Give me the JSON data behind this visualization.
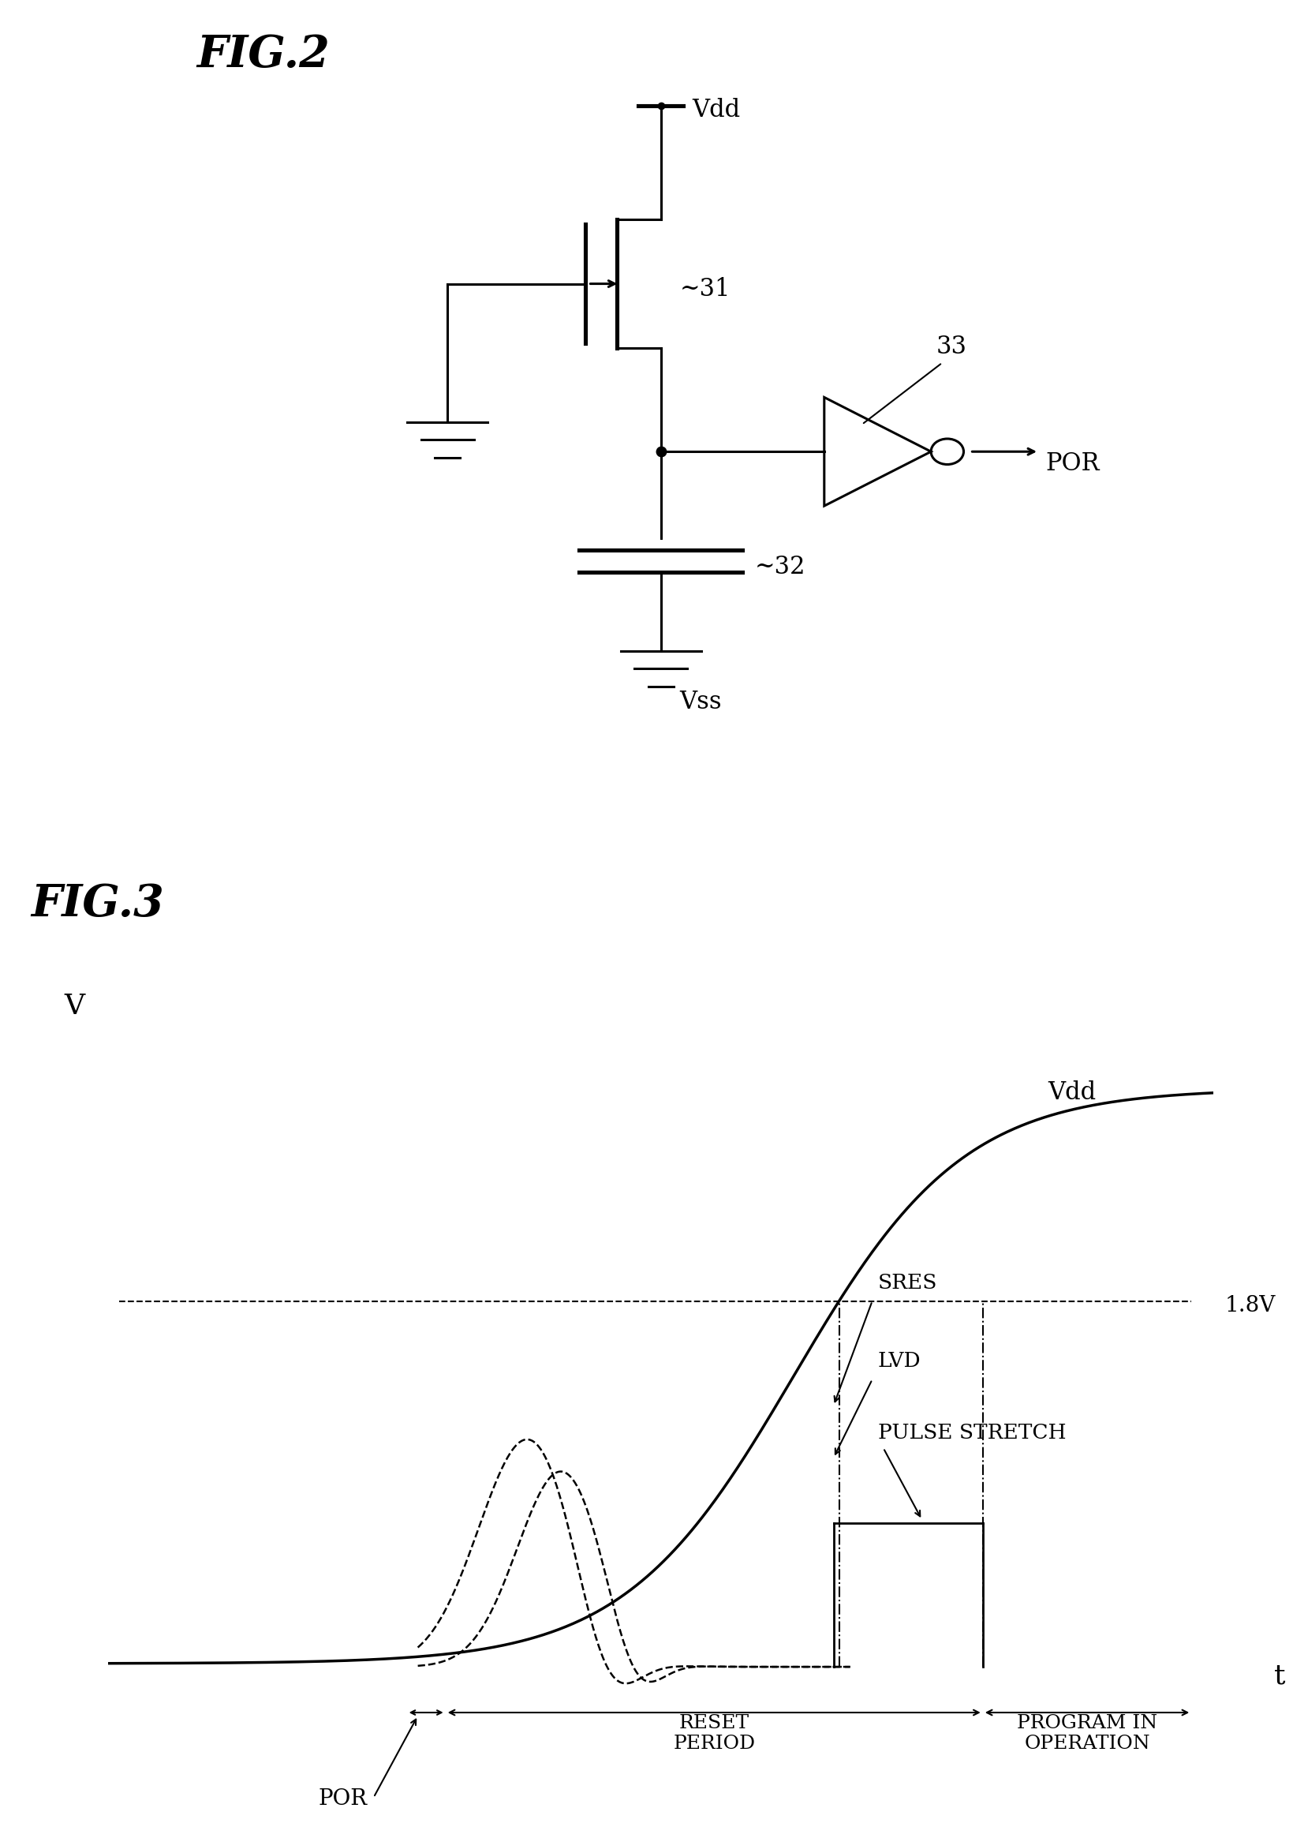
{
  "fig_width": 15.92,
  "fig_height": 24.06,
  "bg_color": "#ffffff",
  "fig2_title": "FIG.2",
  "fig3_title": "FIG.3",
  "line_color": "#000000",
  "vdd_label": "Vdd",
  "vss_label": "Vss",
  "por_label": "POR",
  "ref31": "~31",
  "ref32": "~32",
  "ref33": "33",
  "voltage_label": "1.8V",
  "sres_label": "SRES",
  "lvd_label": "LVD",
  "pulse_stretch_label": "PULSE STRETCH",
  "reset_period_label": "RESET\nPERIOD",
  "program_in_operation_label": "PROGRAM IN\nOPERATION",
  "por_bottom_label": "POR",
  "v_axis_label": "V",
  "t_axis_label": "t"
}
